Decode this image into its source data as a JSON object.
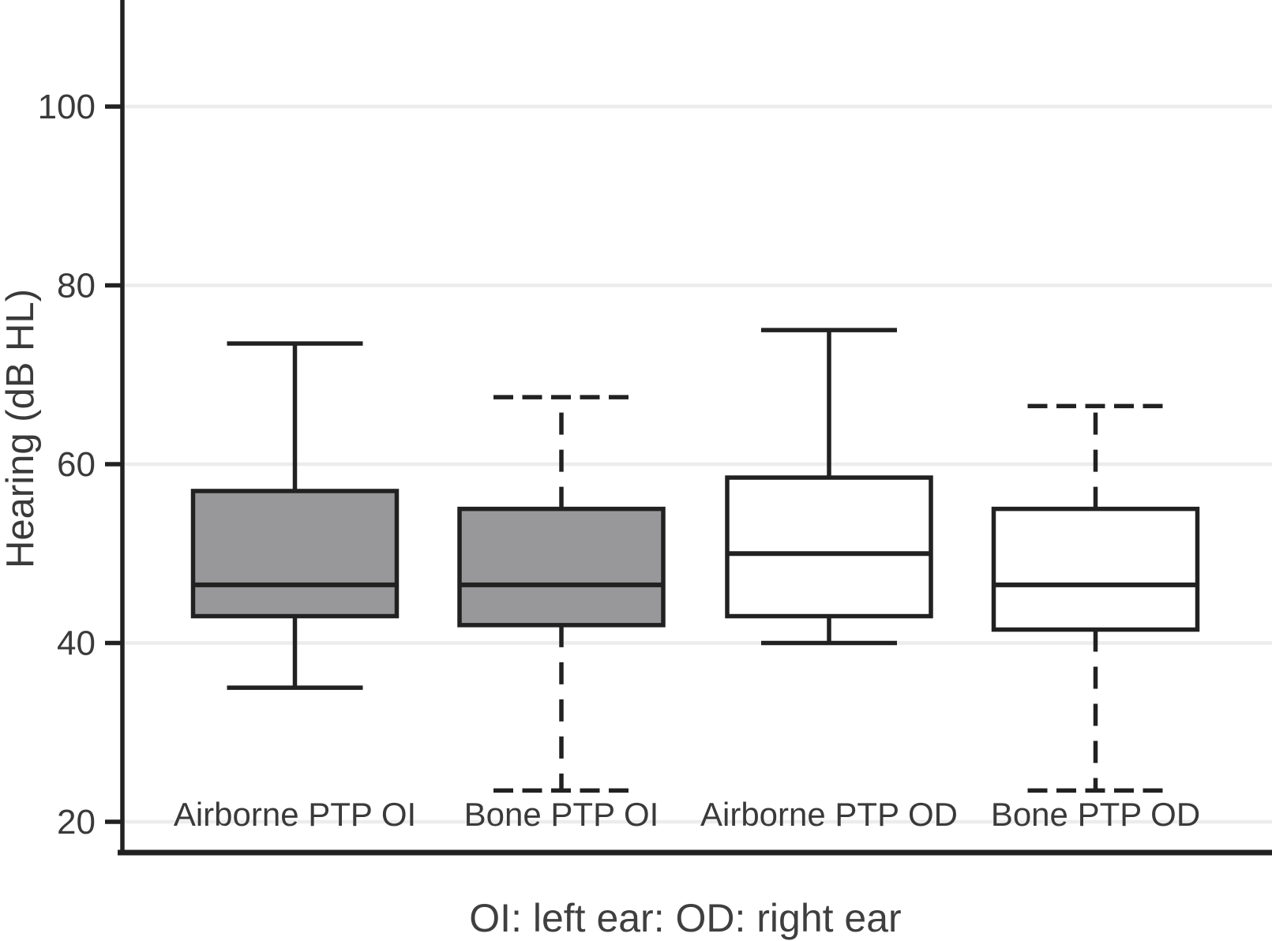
{
  "figure": {
    "y_axis_title": "Hearing (dB HL)",
    "caption": "OI: left ear: OD: right ear"
  },
  "colors": {
    "stroke": "#212121",
    "left_ear_box_fill": "#98989a",
    "right_ear_box_fill": "#ffffff",
    "gridline": "#ececec",
    "text": "#3a3a3a"
  },
  "chart_data": {
    "type": "boxplot",
    "title": "",
    "xlabel": "OI: left ear: OD: right ear",
    "ylabel": "Hearing (dB HL)",
    "ylim": [
      16,
      112
    ],
    "yticks": [
      100,
      80,
      60,
      40,
      20
    ],
    "grid": true,
    "legend": "none",
    "categories": [
      "Airborne PTP OI",
      "Bone PTP OI",
      "Airborne PTP OD",
      "Bone PTP OD"
    ],
    "series": [
      {
        "name": "Airborne PTP OI",
        "whisker_low": 35,
        "q1": 43,
        "median": 46.5,
        "q3": 57,
        "whisker_high": 73.5,
        "fill": "gray",
        "whisker_style": "solid"
      },
      {
        "name": "Bone PTP OI",
        "whisker_low": 23.5,
        "q1": 42,
        "median": 46.5,
        "q3": 55,
        "whisker_high": 67.5,
        "fill": "gray",
        "whisker_style": "dashed"
      },
      {
        "name": "Airborne PTP OD",
        "whisker_low": 40,
        "q1": 43,
        "median": 50,
        "q3": 58.5,
        "whisker_high": 75,
        "fill": "white",
        "whisker_style": "solid"
      },
      {
        "name": "Bone PTP OD",
        "whisker_low": 23.5,
        "q1": 41.5,
        "median": 46.5,
        "q3": 55,
        "whisker_high": 66.5,
        "fill": "white",
        "whisker_style": "dashed"
      }
    ]
  }
}
